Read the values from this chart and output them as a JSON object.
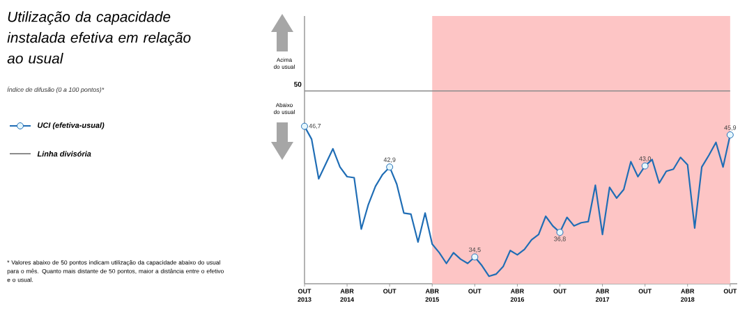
{
  "chart_data": {
    "type": "line",
    "title": "Utilização da capacidade instalada efetiva em relação ao usual",
    "subtitle": "Índice de difusão (0 a 100 pontos)*",
    "x": [
      "2013-10",
      "2013-11",
      "2013-12",
      "2014-01",
      "2014-02",
      "2014-03",
      "2014-04",
      "2014-05",
      "2014-06",
      "2014-07",
      "2014-08",
      "2014-09",
      "2014-10",
      "2014-11",
      "2014-12",
      "2015-01",
      "2015-02",
      "2015-03",
      "2015-04",
      "2015-05",
      "2015-06",
      "2015-07",
      "2015-08",
      "2015-09",
      "2015-10",
      "2015-11",
      "2015-12",
      "2016-01",
      "2016-02",
      "2016-03",
      "2016-04",
      "2016-05",
      "2016-06",
      "2016-07",
      "2016-08",
      "2016-09",
      "2016-10",
      "2016-11",
      "2016-12",
      "2017-01",
      "2017-02",
      "2017-03",
      "2017-04",
      "2017-05",
      "2017-06",
      "2017-07",
      "2017-08",
      "2017-09",
      "2017-10",
      "2017-11",
      "2017-12",
      "2018-01",
      "2018-02",
      "2018-03",
      "2018-04",
      "2018-05",
      "2018-06",
      "2018-07",
      "2018-08",
      "2018-09",
      "2018-10"
    ],
    "series": [
      {
        "name": "UCI (efetiva-usual)",
        "color": "#1f6db5",
        "values": [
          46.7,
          45.5,
          41.8,
          43.2,
          44.6,
          42.9,
          42.0,
          41.9,
          37.1,
          39.4,
          41.1,
          42.2,
          42.9,
          41.3,
          38.6,
          38.5,
          35.9,
          38.6,
          35.7,
          34.9,
          33.9,
          34.9,
          34.3,
          33.9,
          34.5,
          33.7,
          32.7,
          32.9,
          33.6,
          35.1,
          34.7,
          35.2,
          36.1,
          36.6,
          38.3,
          37.4,
          36.8,
          38.2,
          37.4,
          37.7,
          37.8,
          41.2,
          36.6,
          41.0,
          40.0,
          40.8,
          43.4,
          42.0,
          43.0,
          43.6,
          41.4,
          42.5,
          42.7,
          43.8,
          43.1,
          37.2,
          42.9,
          44.0,
          45.2,
          42.9,
          45.9
        ],
        "value_labels": [
          "46,7",
          null,
          null,
          null,
          null,
          null,
          null,
          null,
          null,
          null,
          null,
          null,
          "42,9",
          null,
          null,
          null,
          null,
          null,
          null,
          null,
          null,
          null,
          null,
          null,
          "34,5",
          null,
          null,
          null,
          null,
          null,
          null,
          null,
          null,
          null,
          null,
          null,
          "36,8",
          null,
          null,
          null,
          null,
          null,
          null,
          null,
          null,
          null,
          null,
          null,
          "43,0",
          null,
          null,
          null,
          null,
          null,
          null,
          null,
          null,
          null,
          null,
          null,
          "45,9"
        ]
      },
      {
        "name": "Linha divisória",
        "color": "#8c8c8c",
        "x": [
          "2013-10",
          "2018-10"
        ],
        "values": [
          50,
          50
        ]
      }
    ],
    "xlim": [
      "2013-10",
      "2018-11"
    ],
    "ylim": [
      32,
      57
    ],
    "xticks": [
      {
        "value": "2013-10",
        "label": "OUT 2013"
      },
      {
        "value": "2014-04",
        "label": "ABR 2014"
      },
      {
        "value": "2014-10",
        "label": "OUT"
      },
      {
        "value": "2015-04",
        "label": "ABR 2015"
      },
      {
        "value": "2015-10",
        "label": "OUT"
      },
      {
        "value": "2016-04",
        "label": "ABR 2016"
      },
      {
        "value": "2016-10",
        "label": "OUT"
      },
      {
        "value": "2017-04",
        "label": "ABR 2017"
      },
      {
        "value": "2017-10",
        "label": "OUT"
      },
      {
        "value": "2018-04",
        "label": "ABR 2018"
      },
      {
        "value": "2018-10",
        "label": "OUT"
      }
    ],
    "bands": [
      {
        "axis": "x",
        "from": "2015-04",
        "to": "2018-10",
        "color": "#fdc5c5"
      }
    ],
    "legend": "left",
    "annotations": [
      "50",
      "Acima do usual",
      "Abaixo do usual",
      "* Valores abaixo de 50 pontos indicam utilização da capacidade abaixo do usual para o mês. Quanto mais distante de 50 pontos, maior a distância entre o efetivo e o usual."
    ]
  }
}
